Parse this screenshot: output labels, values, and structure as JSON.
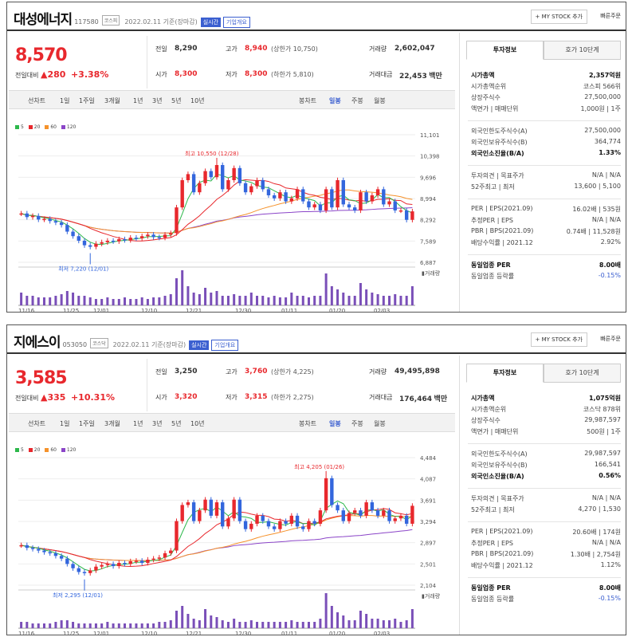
{
  "panels": [
    {
      "name": "대성에너지",
      "code": "117580",
      "market": "코스피",
      "date_info": "2022.02.11 기준(장마감)",
      "realtime": "실시간",
      "overview": "기업개요",
      "my_stock": "+ MY STOCK 추가",
      "quick_order": "빠른주문",
      "price": "8,570",
      "change_label": "전일대비",
      "change": "▲280",
      "change_pct": "+3.38%",
      "quotes": {
        "prev_label": "전일",
        "prev": "8,290",
        "high_label": "고가",
        "high": "8,940",
        "high_limit": "(상한가 10,750)",
        "volume_label": "거래량",
        "volume": "2,602,047",
        "open_label": "시가",
        "open": "8,300",
        "low_label": "저가",
        "low": "8,300",
        "low_limit": "(하한가 5,810)",
        "amount_label": "거래대금",
        "amount": "22,453",
        "amount_unit": "백만"
      },
      "toolbar": {
        "line": "선차트",
        "d1": "1일",
        "w1": "1주일",
        "m3": "3개월",
        "y1": "1년",
        "y3": "3년",
        "y5": "5년",
        "y10": "10년",
        "candle": "봉차트",
        "daily": "일봉",
        "weekly": "주봉",
        "monthly": "월봉"
      },
      "legend": {
        "ma5": "5",
        "ma20": "20",
        "ma60": "60",
        "ma120": "120"
      },
      "max_label": "최고 10,550 (12/28)",
      "min_label": "최저 7,220 (12/01)",
      "volume_axis_label": "거래량",
      "tabs": {
        "invest": "투자정보",
        "order": "호가 10단계"
      },
      "info": [
        {
          "l": "시가총액",
          "v": "2,357억원",
          "b": true
        },
        {
          "l": "시가총액순위",
          "v": "코스피 566위"
        },
        {
          "l": "상장주식수",
          "v": "27,500,000"
        },
        {
          "l": "액면가 | 매매단위",
          "v": "1,000원 | 1주"
        },
        {
          "l": "외국인한도주식수(A)",
          "v": "27,500,000"
        },
        {
          "l": "외국인보유주식수(B)",
          "v": "364,774"
        },
        {
          "l": "외국인소진율(B/A)",
          "v": "1.33%",
          "b": true
        },
        {
          "l": "투자의견 | 목표주가",
          "v": "N/A | N/A"
        },
        {
          "l": "52주최고 | 최저",
          "v": "13,600 | 5,100"
        },
        {
          "l": "PER | EPS(2021.09)",
          "v": "16.02배 | 535원"
        },
        {
          "l": "추정PER | EPS",
          "v": "N/A | N/A"
        },
        {
          "l": "PBR | BPS(2021.09)",
          "v": "0.74배 | 11,528원"
        },
        {
          "l": "배당수익률 | 2021.12",
          "v": "2.92%"
        },
        {
          "l": "동일업종 PER",
          "v": "8.00배",
          "b": true
        },
        {
          "l": "동일업종 등락률",
          "v": "-0.15%",
          "blue": true
        }
      ],
      "chart_data": {
        "type": "candlestick",
        "y_ticks": [
          "11,101",
          "10,398",
          "9,696",
          "8,994",
          "8,292",
          "7,589",
          "6,887"
        ],
        "x_ticks": [
          "11/16",
          "11/25",
          "12/01",
          "12/10",
          "12/21",
          "12/30",
          "01/11",
          "01/20",
          "02/03"
        ],
        "ylim": [
          6887,
          11101
        ],
        "ma_colors": {
          "ma5": "#2db84b",
          "ma20": "#e8282d",
          "ma60": "#f5922b",
          "ma120": "#8b45c8"
        },
        "close": [
          8500,
          8380,
          8420,
          8300,
          8320,
          8250,
          8200,
          8120,
          7900,
          7750,
          7600,
          7450,
          7400,
          7500,
          7550,
          7600,
          7580,
          7650,
          7620,
          7700,
          7680,
          7750,
          7800,
          7720,
          7700,
          7800,
          7850,
          8700,
          9600,
          9800,
          9200,
          9500,
          9900,
          9700,
          10100,
          9300,
          9600,
          10000,
          9500,
          9200,
          9400,
          9600,
          9300,
          9100,
          9000,
          9200,
          8900,
          9000,
          9300,
          8900,
          8700,
          8800,
          8600,
          9300,
          8700,
          9600,
          8800,
          8700,
          8600,
          9200,
          8900,
          9100,
          9300,
          8800,
          8900,
          8600,
          8600,
          8290,
          8570
        ],
        "volume": [
          40,
          30,
          30,
          25,
          25,
          25,
          30,
          35,
          45,
          40,
          30,
          30,
          25,
          20,
          20,
          25,
          20,
          20,
          25,
          20,
          20,
          25,
          20,
          25,
          25,
          30,
          35,
          85,
          110,
          60,
          40,
          35,
          55,
          40,
          45,
          30,
          30,
          35,
          30,
          30,
          40,
          30,
          30,
          25,
          30,
          25,
          25,
          40,
          30,
          30,
          25,
          30,
          30,
          100,
          60,
          50,
          40,
          30,
          30,
          70,
          50,
          40,
          35,
          30,
          30,
          35,
          30,
          30,
          60
        ]
      }
    },
    {
      "name": "지에스이",
      "code": "053050",
      "market": "코스닥",
      "date_info": "2022.02.11 기준(장마감)",
      "realtime": "실시간",
      "overview": "기업개요",
      "my_stock": "+ MY STOCK 추가",
      "quick_order": "빠른주문",
      "price": "3,585",
      "change_label": "전일대비",
      "change": "▲335",
      "change_pct": "+10.31%",
      "quotes": {
        "prev_label": "전일",
        "prev": "3,250",
        "high_label": "고가",
        "high": "3,760",
        "high_limit": "(상한가 4,225)",
        "volume_label": "거래량",
        "volume": "49,495,898",
        "open_label": "시가",
        "open": "3,320",
        "low_label": "저가",
        "low": "3,315",
        "low_limit": "(하한가 2,275)",
        "amount_label": "거래대금",
        "amount": "176,464",
        "amount_unit": "백만"
      },
      "toolbar": {
        "line": "선차트",
        "d1": "1일",
        "w1": "1주일",
        "m3": "3개월",
        "y1": "1년",
        "y3": "3년",
        "y5": "5년",
        "y10": "10년",
        "candle": "봉차트",
        "daily": "일봉",
        "weekly": "주봉",
        "monthly": "월봉"
      },
      "legend": {
        "ma5": "5",
        "ma20": "20",
        "ma60": "60",
        "ma120": "120"
      },
      "max_label": "최고 4,205 (01/26)",
      "min_label": "최저 2,295 (12/01)",
      "volume_axis_label": "거래량",
      "tabs": {
        "invest": "투자정보",
        "order": "호가 10단계"
      },
      "info": [
        {
          "l": "시가총액",
          "v": "1,075억원",
          "b": true
        },
        {
          "l": "시가총액순위",
          "v": "코스닥 878위"
        },
        {
          "l": "상장주식수",
          "v": "29,987,597"
        },
        {
          "l": "액면가 | 매매단위",
          "v": "500원 | 1주"
        },
        {
          "l": "외국인한도주식수(A)",
          "v": "29,987,597"
        },
        {
          "l": "외국인보유주식수(B)",
          "v": "166,541"
        },
        {
          "l": "외국인소진율(B/A)",
          "v": "0.56%",
          "b": true
        },
        {
          "l": "투자의견 | 목표주가",
          "v": "N/A | N/A"
        },
        {
          "l": "52주최고 | 최저",
          "v": "4,270 | 1,530"
        },
        {
          "l": "PER | EPS(2021.09)",
          "v": "20.60배 | 174원"
        },
        {
          "l": "추정PER | EPS",
          "v": "N/A | N/A"
        },
        {
          "l": "PBR | BPS(2021.09)",
          "v": "1.30배 | 2,754원"
        },
        {
          "l": "배당수익률 | 2021.12",
          "v": "1.12%"
        },
        {
          "l": "동일업종 PER",
          "v": "8.00배",
          "b": true
        },
        {
          "l": "동일업종 등락률",
          "v": "-0.15%",
          "blue": true
        }
      ],
      "chart_data": {
        "type": "candlestick",
        "y_ticks": [
          "4,484",
          "4,087",
          "3,691",
          "3,294",
          "2,897",
          "2,501",
          "2,104"
        ],
        "x_ticks": [
          "11/16",
          "11/25",
          "12/01",
          "12/10",
          "12/21",
          "12/30",
          "01/11",
          "01/20",
          "02/03"
        ],
        "ylim": [
          2104,
          4484
        ],
        "ma_colors": {
          "ma5": "#2db84b",
          "ma20": "#e8282d",
          "ma60": "#f5922b",
          "ma120": "#8b45c8"
        },
        "close": [
          2850,
          2800,
          2780,
          2750,
          2720,
          2700,
          2650,
          2600,
          2500,
          2420,
          2350,
          2330,
          2380,
          2450,
          2480,
          2500,
          2460,
          2520,
          2500,
          2550,
          2560,
          2520,
          2580,
          2600,
          2620,
          2700,
          2750,
          3300,
          3600,
          3650,
          3300,
          3500,
          3700,
          3400,
          3650,
          3200,
          3350,
          3700,
          3300,
          3150,
          3250,
          3400,
          3300,
          3200,
          3150,
          3300,
          3250,
          3400,
          3200,
          3150,
          3300,
          3250,
          3500,
          4100,
          3600,
          3500,
          3300,
          3450,
          3500,
          3400,
          3650,
          3500,
          3400,
          3500,
          3300,
          3350,
          3400,
          3250,
          3585
        ],
        "volume": [
          20,
          20,
          15,
          15,
          15,
          15,
          20,
          25,
          25,
          20,
          15,
          15,
          15,
          15,
          15,
          20,
          15,
          15,
          15,
          15,
          15,
          15,
          15,
          15,
          20,
          20,
          25,
          55,
          70,
          45,
          30,
          25,
          60,
          40,
          35,
          25,
          20,
          30,
          20,
          20,
          25,
          20,
          20,
          20,
          20,
          20,
          20,
          25,
          20,
          20,
          20,
          20,
          30,
          110,
          70,
          50,
          40,
          25,
          25,
          55,
          45,
          30,
          30,
          25,
          25,
          30,
          20,
          25,
          60
        ]
      }
    }
  ]
}
